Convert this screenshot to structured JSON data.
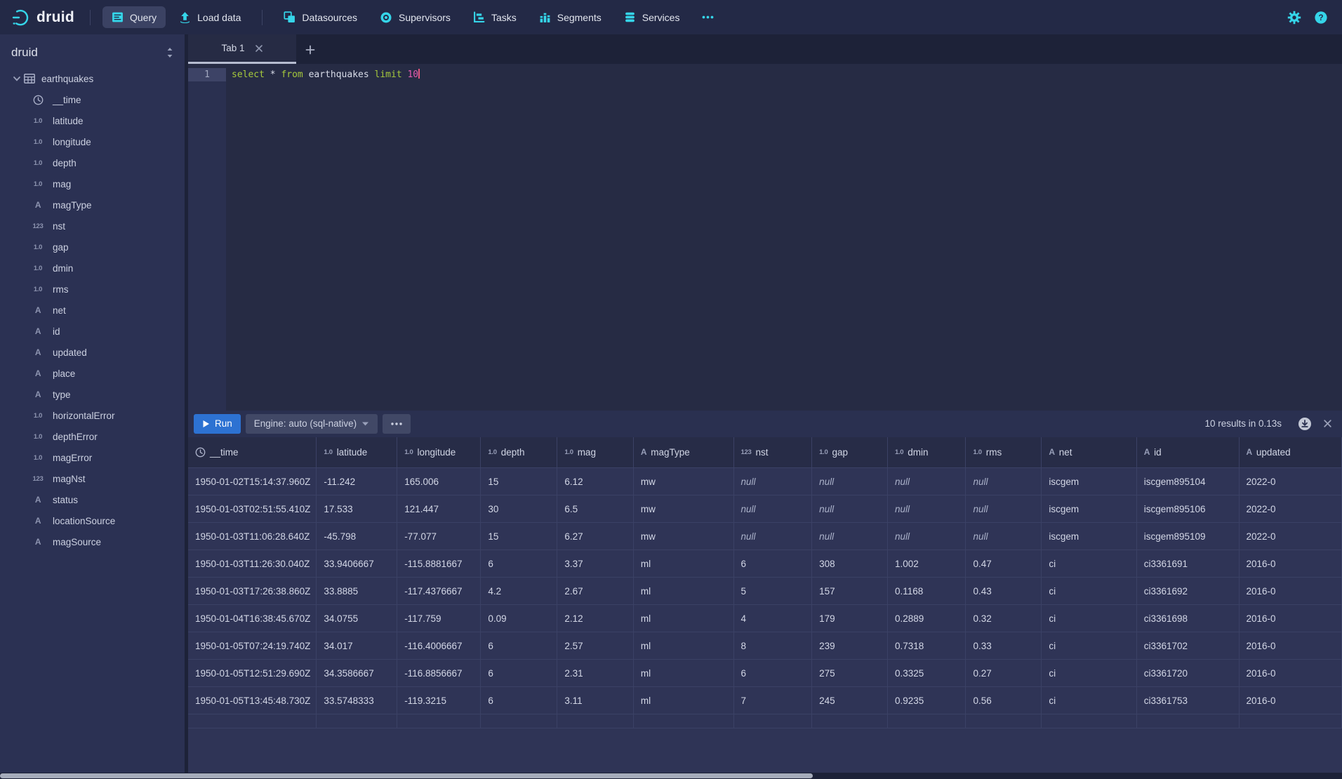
{
  "colors": {
    "accent": "#35d5e9",
    "run_button": "#2d72d2",
    "sql_keyword": "#a6c93c",
    "sql_number": "#e05ab0"
  },
  "type_badges": {
    "float": "1.0",
    "string": "A",
    "long": "123"
  },
  "navbar": {
    "brand": "druid",
    "items": [
      {
        "label": "Query",
        "icon": "query",
        "active": true
      },
      {
        "label": "Load data",
        "icon": "load-data",
        "divider_after": true
      },
      {
        "label": "Datasources",
        "icon": "datasources"
      },
      {
        "label": "Supervisors",
        "icon": "supervisors"
      },
      {
        "label": "Tasks",
        "icon": "tasks"
      },
      {
        "label": "Segments",
        "icon": "segments"
      },
      {
        "label": "Services",
        "icon": "services"
      },
      {
        "icon": "more"
      }
    ]
  },
  "sidebar": {
    "title": "druid",
    "table": {
      "name": "earthquakes",
      "columns": [
        {
          "name": "__time",
          "type": "time"
        },
        {
          "name": "latitude",
          "type": "float"
        },
        {
          "name": "longitude",
          "type": "float"
        },
        {
          "name": "depth",
          "type": "float"
        },
        {
          "name": "mag",
          "type": "float"
        },
        {
          "name": "magType",
          "type": "string"
        },
        {
          "name": "nst",
          "type": "long"
        },
        {
          "name": "gap",
          "type": "float"
        },
        {
          "name": "dmin",
          "type": "float"
        },
        {
          "name": "rms",
          "type": "float"
        },
        {
          "name": "net",
          "type": "string"
        },
        {
          "name": "id",
          "type": "string"
        },
        {
          "name": "updated",
          "type": "string"
        },
        {
          "name": "place",
          "type": "string"
        },
        {
          "name": "type",
          "type": "string"
        },
        {
          "name": "horizontalError",
          "type": "float"
        },
        {
          "name": "depthError",
          "type": "float"
        },
        {
          "name": "magError",
          "type": "float"
        },
        {
          "name": "magNst",
          "type": "long"
        },
        {
          "name": "status",
          "type": "string"
        },
        {
          "name": "locationSource",
          "type": "string"
        },
        {
          "name": "magSource",
          "type": "string"
        }
      ]
    }
  },
  "tabs": {
    "items": [
      {
        "label": "Tab 1"
      }
    ]
  },
  "editor": {
    "line_number": "1",
    "sql_tokens": [
      {
        "text": "select",
        "type": "keyword"
      },
      {
        "text": " * ",
        "type": "plain"
      },
      {
        "text": "from",
        "type": "keyword"
      },
      {
        "text": " earthquakes ",
        "type": "plain"
      },
      {
        "text": "limit",
        "type": "keyword"
      },
      {
        "text": " ",
        "type": "plain"
      },
      {
        "text": "10",
        "type": "number"
      }
    ]
  },
  "runbar": {
    "run_label": "Run",
    "engine_label": "Engine: auto (sql-native)",
    "status": "10 results in 0.13s"
  },
  "results": {
    "headers": [
      {
        "label": "__time",
        "type": "time"
      },
      {
        "label": "latitude",
        "type": "float"
      },
      {
        "label": "longitude",
        "type": "float"
      },
      {
        "label": "depth",
        "type": "float"
      },
      {
        "label": "mag",
        "type": "float"
      },
      {
        "label": "magType",
        "type": "string"
      },
      {
        "label": "nst",
        "type": "long"
      },
      {
        "label": "gap",
        "type": "float"
      },
      {
        "label": "dmin",
        "type": "float"
      },
      {
        "label": "rms",
        "type": "float"
      },
      {
        "label": "net",
        "type": "string"
      },
      {
        "label": "id",
        "type": "string"
      },
      {
        "label": "updated",
        "type": "string"
      }
    ],
    "rows": [
      [
        "1950-01-02T15:14:37.960Z",
        "-11.242",
        "165.006",
        "15",
        "6.12",
        "mw",
        "null",
        "null",
        "null",
        "null",
        "iscgem",
        "iscgem895104",
        "2022-0"
      ],
      [
        "1950-01-03T02:51:55.410Z",
        "17.533",
        "121.447",
        "30",
        "6.5",
        "mw",
        "null",
        "null",
        "null",
        "null",
        "iscgem",
        "iscgem895106",
        "2022-0"
      ],
      [
        "1950-01-03T11:06:28.640Z",
        "-45.798",
        "-77.077",
        "15",
        "6.27",
        "mw",
        "null",
        "null",
        "null",
        "null",
        "iscgem",
        "iscgem895109",
        "2022-0"
      ],
      [
        "1950-01-03T11:26:30.040Z",
        "33.9406667",
        "-115.8881667",
        "6",
        "3.37",
        "ml",
        "6",
        "308",
        "1.002",
        "0.47",
        "ci",
        "ci3361691",
        "2016-0"
      ],
      [
        "1950-01-03T17:26:38.860Z",
        "33.8885",
        "-117.4376667",
        "4.2",
        "2.67",
        "ml",
        "5",
        "157",
        "0.1168",
        "0.43",
        "ci",
        "ci3361692",
        "2016-0"
      ],
      [
        "1950-01-04T16:38:45.670Z",
        "34.0755",
        "-117.759",
        "0.09",
        "2.12",
        "ml",
        "4",
        "179",
        "0.2889",
        "0.32",
        "ci",
        "ci3361698",
        "2016-0"
      ],
      [
        "1950-01-05T07:24:19.740Z",
        "34.017",
        "-116.4006667",
        "6",
        "2.57",
        "ml",
        "8",
        "239",
        "0.7318",
        "0.33",
        "ci",
        "ci3361702",
        "2016-0"
      ],
      [
        "1950-01-05T12:51:29.690Z",
        "34.3586667",
        "-116.8856667",
        "6",
        "2.31",
        "ml",
        "6",
        "275",
        "0.3325",
        "0.27",
        "ci",
        "ci3361720",
        "2016-0"
      ],
      [
        "1950-01-05T13:45:48.730Z",
        "33.5748333",
        "-119.3215",
        "6",
        "3.11",
        "ml",
        "7",
        "245",
        "0.9235",
        "0.56",
        "ci",
        "ci3361753",
        "2016-0"
      ]
    ]
  }
}
